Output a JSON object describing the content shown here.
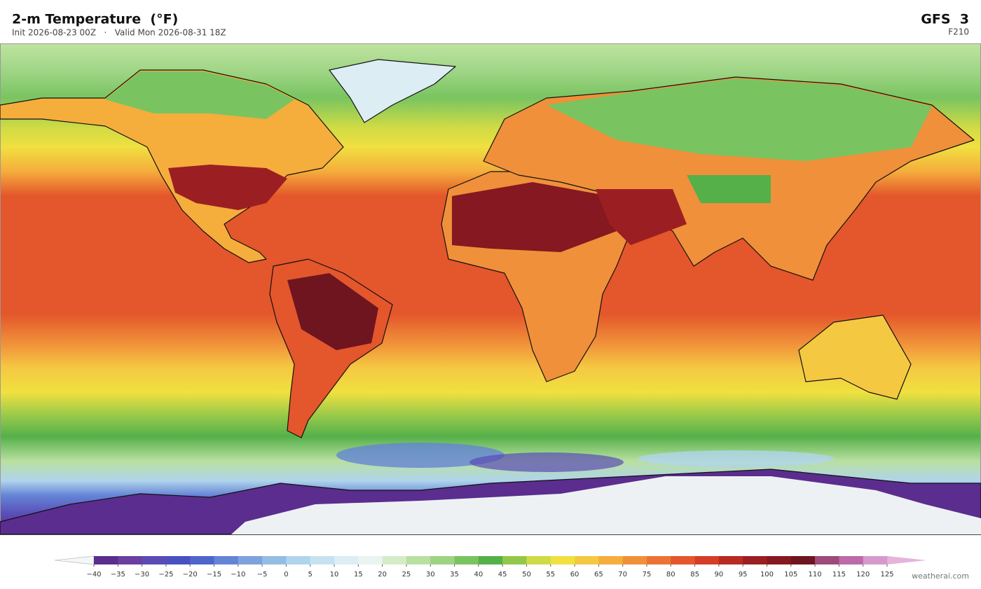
{
  "header": {
    "title": "2-m Temperature  (°F)",
    "subtitle": "Init 2026-08-23 00Z   ·   Valid Mon 2026-08-31 18Z",
    "model": "GFS  3",
    "forecast_hour": "F210"
  },
  "colorbar": {
    "ticks": [
      {
        "value": -40,
        "label": "−40"
      },
      {
        "value": -35,
        "label": "−35"
      },
      {
        "value": -30,
        "label": "−30"
      },
      {
        "value": -25,
        "label": "−25"
      },
      {
        "value": -20,
        "label": "−20"
      },
      {
        "value": -15,
        "label": "−15"
      },
      {
        "value": -10,
        "label": "−10"
      },
      {
        "value": -5,
        "label": "−5"
      },
      0,
      5,
      10,
      15,
      20,
      25,
      30,
      35,
      40,
      45,
      50,
      55,
      60,
      65,
      70,
      75,
      80,
      85,
      90,
      95,
      100,
      105,
      110,
      115,
      120,
      125
    ],
    "colors": [
      "#5b2d8e",
      "#6a3fa0",
      "#5a4bb5",
      "#4a50c0",
      "#4f65cc",
      "#6484d6",
      "#7fa2dd",
      "#94bde4",
      "#b0d4ec",
      "#c6e2f0",
      "#dcedf3",
      "#eaf4f0",
      "#d4ecc8",
      "#b9e0a0",
      "#9cd483",
      "#79c460",
      "#55b04a",
      "#93c84a",
      "#cfdb45",
      "#f0e040",
      "#f5c842",
      "#f5ad3c",
      "#f0903a",
      "#eb7434",
      "#e4562b",
      "#d63d26",
      "#b82a22",
      "#9b1f22",
      "#851821",
      "#6e1520",
      "#9e4a7a",
      "#bc6aa8",
      "#d59acc"
    ],
    "extend_colors": [
      "#f4f6f8",
      "#e6b3dc"
    ]
  },
  "footer": {
    "credit": "weatherai.com"
  }
}
